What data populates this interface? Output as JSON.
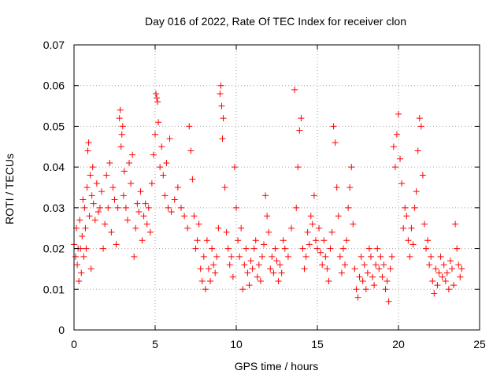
{
  "chart_data": {
    "type": "scatter",
    "title": "Day 016 of 2022, Rate Of TEC Index for receiver clon",
    "xlabel": "GPS time / hours",
    "ylabel": "ROTI / TECUs",
    "xlim": [
      0,
      25
    ],
    "ylim": [
      0,
      0.07
    ],
    "xticks": [
      0,
      5,
      10,
      15,
      20,
      25
    ],
    "yticks": [
      0,
      0.01,
      0.02,
      0.03,
      0.04,
      0.05,
      0.06,
      0.07
    ],
    "xtick_labels": [
      "0",
      "5",
      "10",
      "15",
      "20",
      "25"
    ],
    "ytick_labels": [
      "0",
      "0.01",
      "0.02",
      "0.03",
      "0.04",
      "0.05",
      "0.06",
      "0.07"
    ],
    "grid": true,
    "marker": "plus",
    "color": "#ff0000",
    "points": [
      [
        0.0,
        0.021
      ],
      [
        0.1,
        0.018
      ],
      [
        0.15,
        0.025
      ],
      [
        0.2,
        0.016
      ],
      [
        0.25,
        0.02
      ],
      [
        0.3,
        0.012
      ],
      [
        0.35,
        0.027
      ],
      [
        0.4,
        0.02
      ],
      [
        0.45,
        0.014
      ],
      [
        0.5,
        0.023
      ],
      [
        0.55,
        0.032
      ],
      [
        0.6,
        0.018
      ],
      [
        0.65,
        0.03
      ],
      [
        0.7,
        0.025
      ],
      [
        0.75,
        0.02
      ],
      [
        0.8,
        0.035
      ],
      [
        0.85,
        0.044
      ],
      [
        0.9,
        0.046
      ],
      [
        0.95,
        0.028
      ],
      [
        1.0,
        0.038
      ],
      [
        1.05,
        0.015
      ],
      [
        1.1,
        0.033
      ],
      [
        1.15,
        0.04
      ],
      [
        1.2,
        0.031
      ],
      [
        1.3,
        0.027
      ],
      [
        1.4,
        0.036
      ],
      [
        1.5,
        0.029
      ],
      [
        1.6,
        0.03
      ],
      [
        1.7,
        0.034
      ],
      [
        1.8,
        0.02
      ],
      [
        1.9,
        0.026
      ],
      [
        2.0,
        0.038
      ],
      [
        2.1,
        0.03
      ],
      [
        2.2,
        0.041
      ],
      [
        2.3,
        0.024
      ],
      [
        2.4,
        0.035
      ],
      [
        2.5,
        0.032
      ],
      [
        2.6,
        0.021
      ],
      [
        2.7,
        0.03
      ],
      [
        2.8,
        0.052
      ],
      [
        2.85,
        0.054
      ],
      [
        2.9,
        0.045
      ],
      [
        2.95,
        0.048
      ],
      [
        3.0,
        0.05
      ],
      [
        3.05,
        0.033
      ],
      [
        3.1,
        0.039
      ],
      [
        3.2,
        0.03
      ],
      [
        3.3,
        0.027
      ],
      [
        3.4,
        0.041
      ],
      [
        3.5,
        0.036
      ],
      [
        3.6,
        0.043
      ],
      [
        3.7,
        0.018
      ],
      [
        3.8,
        0.025
      ],
      [
        3.9,
        0.031
      ],
      [
        4.0,
        0.029
      ],
      [
        4.1,
        0.034
      ],
      [
        4.2,
        0.022
      ],
      [
        4.3,
        0.028
      ],
      [
        4.4,
        0.031
      ],
      [
        4.5,
        0.026
      ],
      [
        4.6,
        0.03
      ],
      [
        4.7,
        0.024
      ],
      [
        4.8,
        0.036
      ],
      [
        4.9,
        0.043
      ],
      [
        5.0,
        0.048
      ],
      [
        5.05,
        0.058
      ],
      [
        5.1,
        0.057
      ],
      [
        5.15,
        0.056
      ],
      [
        5.2,
        0.051
      ],
      [
        5.3,
        0.04
      ],
      [
        5.4,
        0.045
      ],
      [
        5.5,
        0.038
      ],
      [
        5.6,
        0.033
      ],
      [
        5.7,
        0.041
      ],
      [
        5.8,
        0.03
      ],
      [
        5.9,
        0.047
      ],
      [
        6.0,
        0.029
      ],
      [
        6.2,
        0.032
      ],
      [
        6.4,
        0.035
      ],
      [
        6.6,
        0.03
      ],
      [
        6.8,
        0.028
      ],
      [
        7.0,
        0.025
      ],
      [
        7.1,
        0.05
      ],
      [
        7.2,
        0.044
      ],
      [
        7.3,
        0.037
      ],
      [
        7.4,
        0.028
      ],
      [
        7.5,
        0.02
      ],
      [
        7.6,
        0.022
      ],
      [
        7.7,
        0.026
      ],
      [
        7.8,
        0.015
      ],
      [
        7.9,
        0.012
      ],
      [
        8.0,
        0.018
      ],
      [
        8.1,
        0.01
      ],
      [
        8.2,
        0.022
      ],
      [
        8.3,
        0.015
      ],
      [
        8.4,
        0.012
      ],
      [
        8.5,
        0.02
      ],
      [
        8.6,
        0.016
      ],
      [
        8.7,
        0.014
      ],
      [
        8.8,
        0.018
      ],
      [
        8.9,
        0.025
      ],
      [
        9.0,
        0.058
      ],
      [
        9.05,
        0.06
      ],
      [
        9.1,
        0.055
      ],
      [
        9.15,
        0.047
      ],
      [
        9.2,
        0.052
      ],
      [
        9.3,
        0.035
      ],
      [
        9.4,
        0.024
      ],
      [
        9.5,
        0.02
      ],
      [
        9.6,
        0.016
      ],
      [
        9.7,
        0.018
      ],
      [
        9.8,
        0.013
      ],
      [
        9.9,
        0.04
      ],
      [
        10.0,
        0.03
      ],
      [
        10.1,
        0.022
      ],
      [
        10.2,
        0.018
      ],
      [
        10.3,
        0.025
      ],
      [
        10.4,
        0.01
      ],
      [
        10.5,
        0.016
      ],
      [
        10.6,
        0.02
      ],
      [
        10.7,
        0.014
      ],
      [
        10.8,
        0.011
      ],
      [
        10.9,
        0.017
      ],
      [
        11.0,
        0.015
      ],
      [
        11.1,
        0.02
      ],
      [
        11.2,
        0.022
      ],
      [
        11.3,
        0.013
      ],
      [
        11.4,
        0.016
      ],
      [
        11.5,
        0.012
      ],
      [
        11.6,
        0.018
      ],
      [
        11.7,
        0.021
      ],
      [
        11.8,
        0.033
      ],
      [
        11.9,
        0.028
      ],
      [
        12.0,
        0.024
      ],
      [
        12.1,
        0.015
      ],
      [
        12.2,
        0.018
      ],
      [
        12.3,
        0.014
      ],
      [
        12.4,
        0.02
      ],
      [
        12.5,
        0.017
      ],
      [
        12.6,
        0.012
      ],
      [
        12.7,
        0.016
      ],
      [
        12.8,
        0.014
      ],
      [
        12.9,
        0.022
      ],
      [
        13.0,
        0.02
      ],
      [
        13.2,
        0.018
      ],
      [
        13.4,
        0.025
      ],
      [
        13.6,
        0.059
      ],
      [
        13.7,
        0.03
      ],
      [
        13.8,
        0.04
      ],
      [
        13.9,
        0.049
      ],
      [
        14.0,
        0.052
      ],
      [
        14.1,
        0.02
      ],
      [
        14.2,
        0.015
      ],
      [
        14.3,
        0.018
      ],
      [
        14.4,
        0.024
      ],
      [
        14.5,
        0.021
      ],
      [
        14.6,
        0.028
      ],
      [
        14.7,
        0.026
      ],
      [
        14.8,
        0.033
      ],
      [
        14.9,
        0.022
      ],
      [
        15.0,
        0.02
      ],
      [
        15.1,
        0.025
      ],
      [
        15.2,
        0.019
      ],
      [
        15.3,
        0.016
      ],
      [
        15.4,
        0.022
      ],
      [
        15.5,
        0.018
      ],
      [
        15.6,
        0.015
      ],
      [
        15.7,
        0.012
      ],
      [
        15.8,
        0.02
      ],
      [
        15.9,
        0.024
      ],
      [
        16.0,
        0.05
      ],
      [
        16.1,
        0.046
      ],
      [
        16.2,
        0.035
      ],
      [
        16.3,
        0.028
      ],
      [
        16.4,
        0.018
      ],
      [
        16.5,
        0.014
      ],
      [
        16.6,
        0.02
      ],
      [
        16.7,
        0.016
      ],
      [
        16.8,
        0.022
      ],
      [
        16.9,
        0.03
      ],
      [
        17.0,
        0.035
      ],
      [
        17.1,
        0.04
      ],
      [
        17.2,
        0.026
      ],
      [
        17.3,
        0.015
      ],
      [
        17.4,
        0.01
      ],
      [
        17.5,
        0.008
      ],
      [
        17.6,
        0.013
      ],
      [
        17.7,
        0.018
      ],
      [
        17.8,
        0.012
      ],
      [
        17.9,
        0.016
      ],
      [
        18.0,
        0.01
      ],
      [
        18.1,
        0.014
      ],
      [
        18.2,
        0.02
      ],
      [
        18.3,
        0.018
      ],
      [
        18.4,
        0.013
      ],
      [
        18.5,
        0.011
      ],
      [
        18.6,
        0.016
      ],
      [
        18.7,
        0.02
      ],
      [
        18.8,
        0.015
      ],
      [
        18.9,
        0.018
      ],
      [
        19.0,
        0.013
      ],
      [
        19.1,
        0.016
      ],
      [
        19.2,
        0.01
      ],
      [
        19.3,
        0.012
      ],
      [
        19.4,
        0.007
      ],
      [
        19.5,
        0.015
      ],
      [
        19.6,
        0.018
      ],
      [
        19.7,
        0.045
      ],
      [
        19.8,
        0.04
      ],
      [
        19.9,
        0.048
      ],
      [
        20.0,
        0.053
      ],
      [
        20.1,
        0.042
      ],
      [
        20.2,
        0.036
      ],
      [
        20.3,
        0.025
      ],
      [
        20.4,
        0.03
      ],
      [
        20.5,
        0.028
      ],
      [
        20.6,
        0.022
      ],
      [
        20.7,
        0.018
      ],
      [
        20.8,
        0.025
      ],
      [
        20.9,
        0.021
      ],
      [
        21.0,
        0.03
      ],
      [
        21.1,
        0.034
      ],
      [
        21.2,
        0.044
      ],
      [
        21.3,
        0.052
      ],
      [
        21.4,
        0.05
      ],
      [
        21.5,
        0.038
      ],
      [
        21.6,
        0.026
      ],
      [
        21.7,
        0.02
      ],
      [
        21.8,
        0.022
      ],
      [
        21.9,
        0.016
      ],
      [
        22.0,
        0.018
      ],
      [
        22.1,
        0.012
      ],
      [
        22.2,
        0.009
      ],
      [
        22.3,
        0.015
      ],
      [
        22.4,
        0.011
      ],
      [
        22.5,
        0.014
      ],
      [
        22.6,
        0.018
      ],
      [
        22.7,
        0.013
      ],
      [
        22.8,
        0.016
      ],
      [
        22.9,
        0.012
      ],
      [
        23.0,
        0.014
      ],
      [
        23.1,
        0.01
      ],
      [
        23.2,
        0.017
      ],
      [
        23.3,
        0.015
      ],
      [
        23.4,
        0.011
      ],
      [
        23.5,
        0.026
      ],
      [
        23.6,
        0.02
      ],
      [
        23.7,
        0.016
      ],
      [
        23.8,
        0.013
      ],
      [
        23.9,
        0.015
      ]
    ]
  }
}
